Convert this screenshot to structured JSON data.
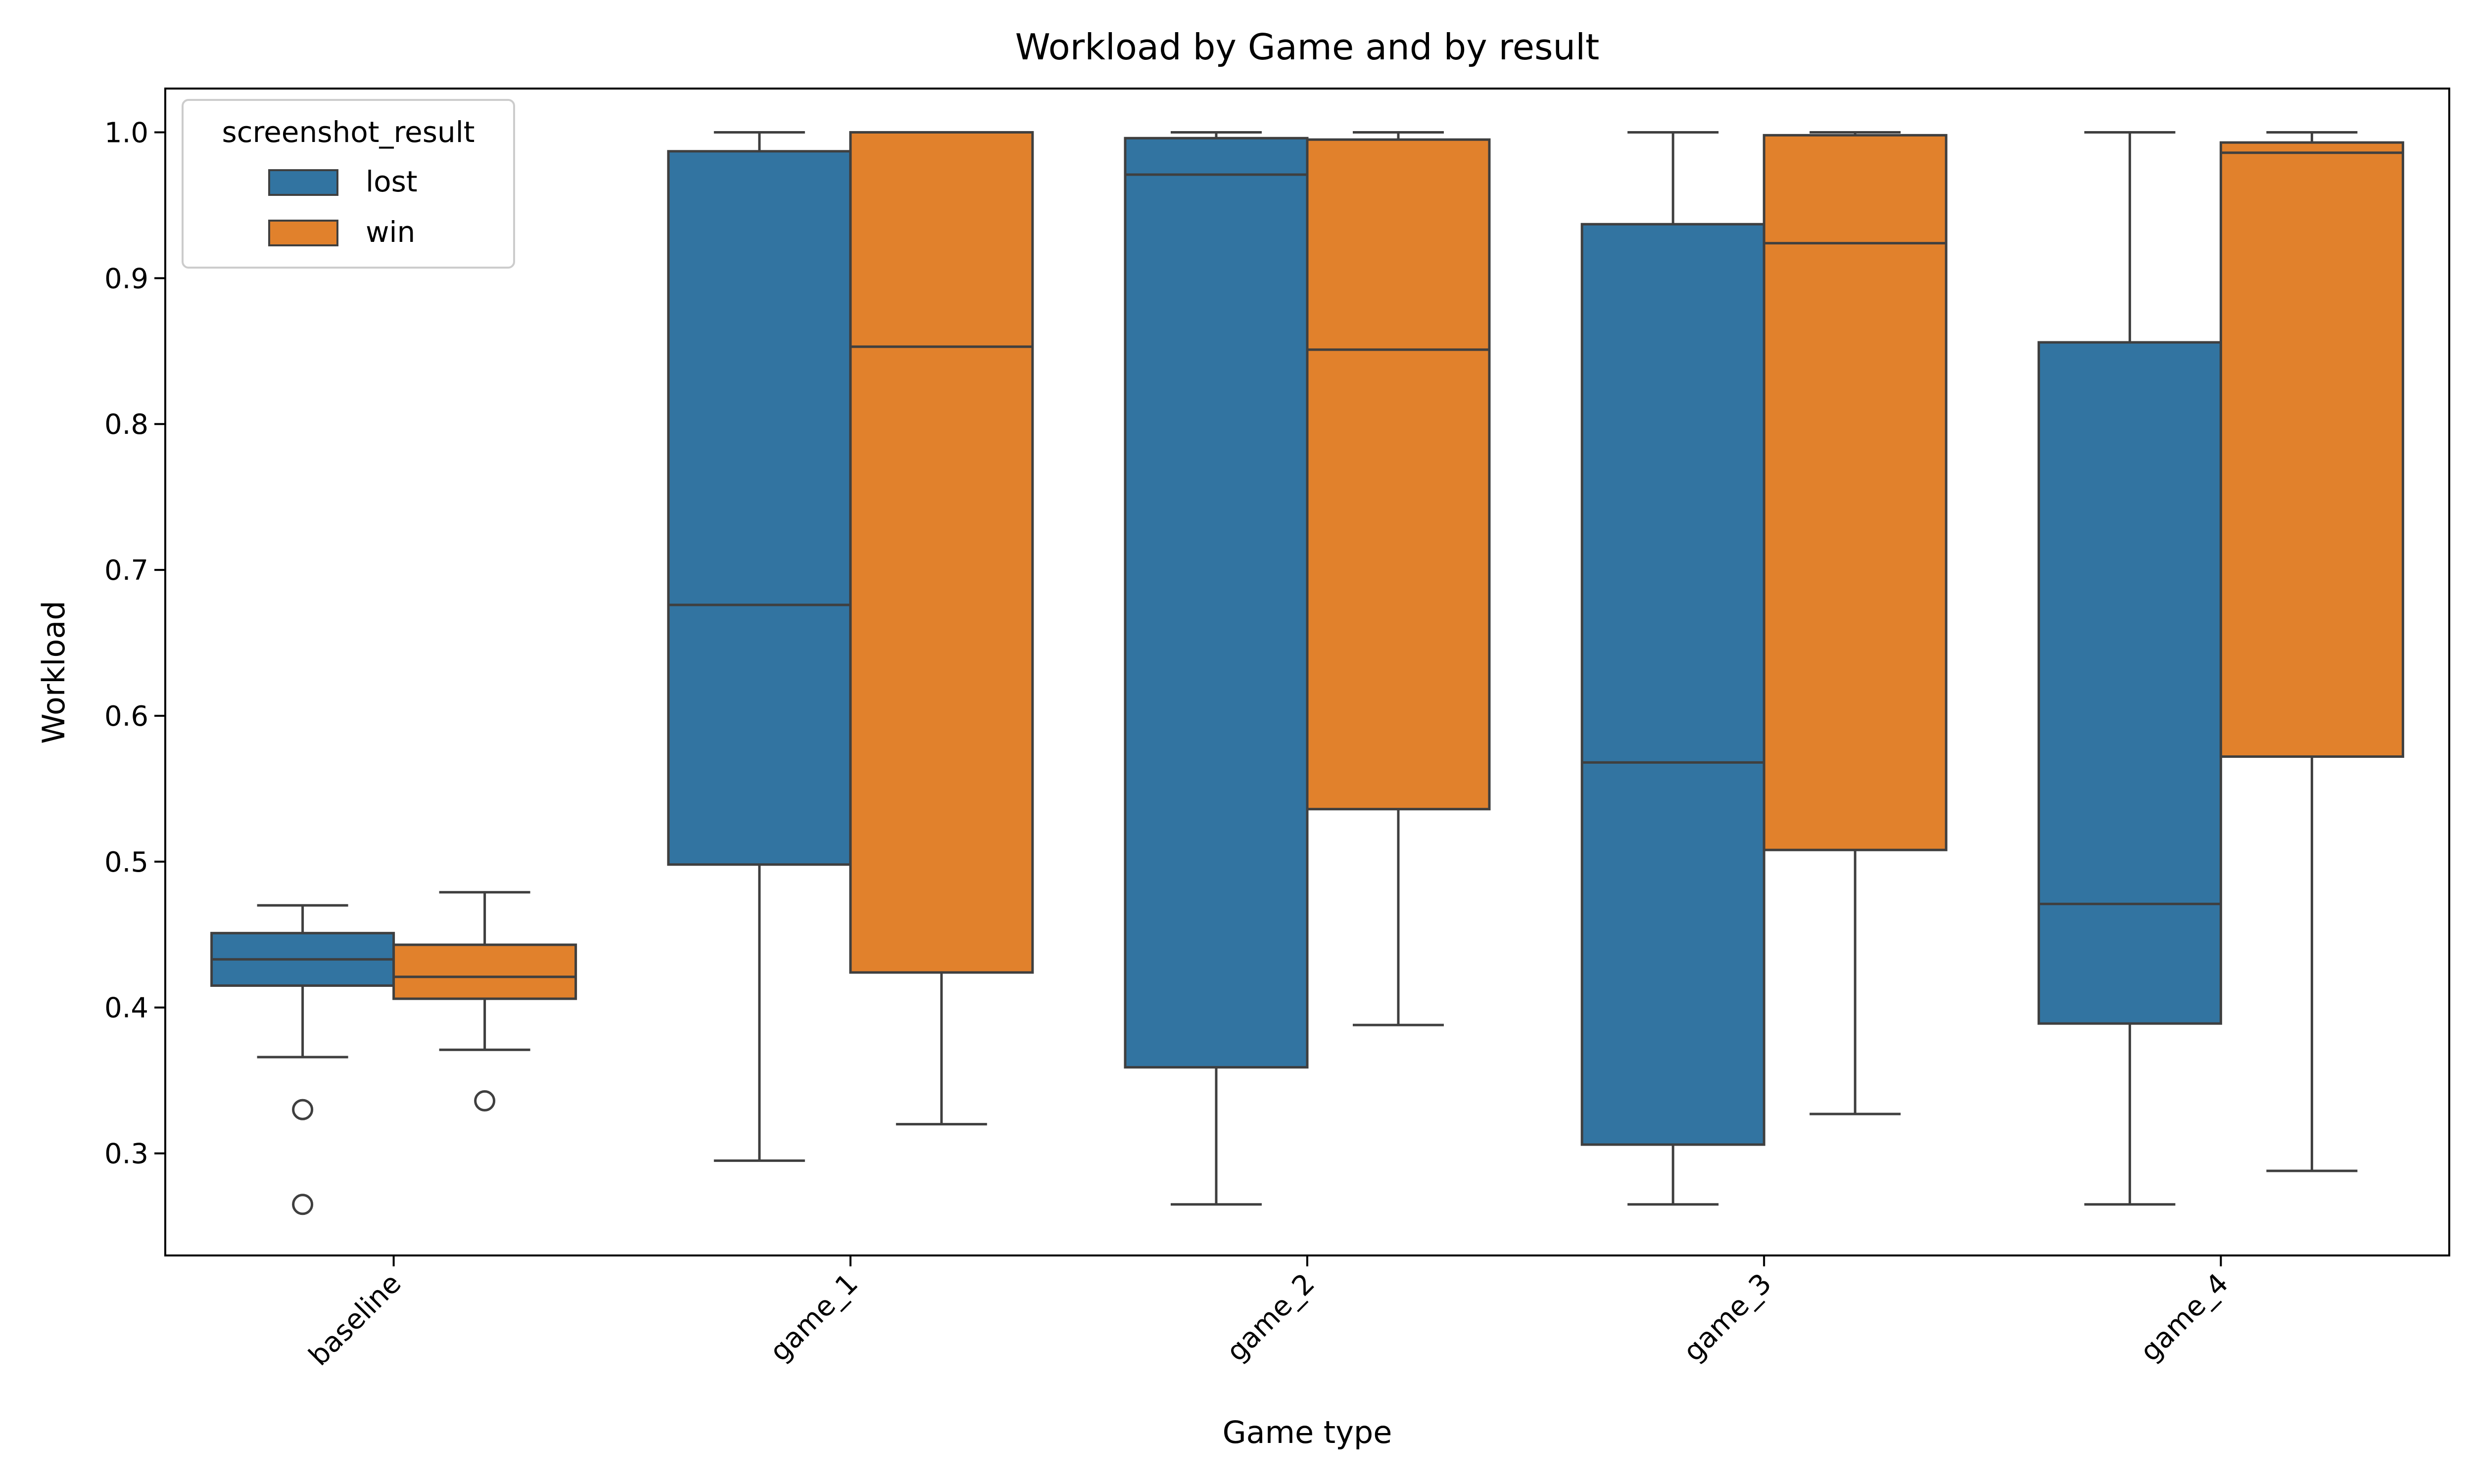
{
  "chart_data": {
    "type": "box",
    "title": "Workload by Game and by result",
    "xlabel": "Game type",
    "ylabel": "Workload",
    "ylim": [
      0.23,
      1.03
    ],
    "yticks": [
      0.3,
      0.4,
      0.5,
      0.6,
      0.7,
      0.8,
      0.9,
      1.0
    ],
    "ytick_labels": [
      "0.3",
      "0.4",
      "0.5",
      "0.6",
      "0.7",
      "0.8",
      "0.9",
      "1.0"
    ],
    "categories": [
      "baseline",
      "game_1",
      "game_2",
      "game_3",
      "game_4"
    ],
    "legend": {
      "title": "screenshot_result",
      "position": "upper-left"
    },
    "grid": false,
    "series": [
      {
        "name": "lost",
        "color": "#3274a1",
        "boxes": [
          {
            "whislo": 0.366,
            "q1": 0.415,
            "med": 0.433,
            "q3": 0.451,
            "whishi": 0.47,
            "fliers": [
              0.33,
              0.265
            ]
          },
          {
            "whislo": 0.295,
            "q1": 0.498,
            "med": 0.676,
            "q3": 0.987,
            "whishi": 1.0,
            "fliers": []
          },
          {
            "whislo": 0.265,
            "q1": 0.359,
            "med": 0.971,
            "q3": 0.996,
            "whishi": 1.0,
            "fliers": []
          },
          {
            "whislo": 0.265,
            "q1": 0.306,
            "med": 0.568,
            "q3": 0.937,
            "whishi": 1.0,
            "fliers": []
          },
          {
            "whislo": 0.265,
            "q1": 0.389,
            "med": 0.471,
            "q3": 0.856,
            "whishi": 1.0,
            "fliers": []
          }
        ]
      },
      {
        "name": "win",
        "color": "#e1812c",
        "boxes": [
          {
            "whislo": 0.371,
            "q1": 0.406,
            "med": 0.421,
            "q3": 0.443,
            "whishi": 0.479,
            "fliers": [
              0.336
            ]
          },
          {
            "whislo": 0.32,
            "q1": 0.424,
            "med": 0.853,
            "q3": 1.0,
            "whishi": 1.0,
            "fliers": []
          },
          {
            "whislo": 0.388,
            "q1": 0.536,
            "med": 0.851,
            "q3": 0.995,
            "whishi": 1.0,
            "fliers": []
          },
          {
            "whislo": 0.327,
            "q1": 0.508,
            "med": 0.924,
            "q3": 0.998,
            "whishi": 1.0,
            "fliers": []
          },
          {
            "whislo": 0.288,
            "q1": 0.572,
            "med": 0.986,
            "q3": 0.993,
            "whishi": 1.0,
            "fliers": []
          }
        ]
      }
    ]
  }
}
